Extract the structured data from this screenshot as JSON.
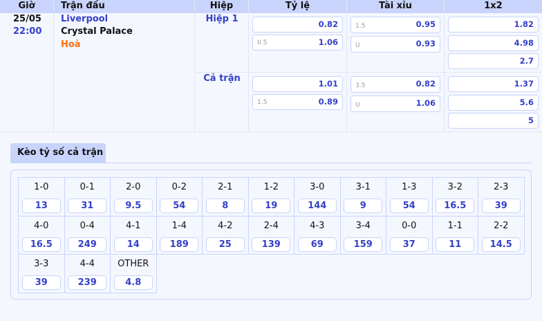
{
  "header": {
    "time": "Giờ",
    "match": "Trận đấu",
    "half": "Hiệp",
    "handicap": "Tỷ lệ",
    "overunder": "Tài xỉu",
    "x12": "1x2"
  },
  "match": {
    "date": "25/05",
    "time": "22:00",
    "home": "Liverpool",
    "away": "Crystal Palace",
    "draw": "Hoà"
  },
  "periods": [
    {
      "label": "Hiệp 1",
      "handicap": [
        {
          "line": "",
          "odds": "0.82"
        },
        {
          "line": "0.5",
          "odds": "1.06"
        }
      ],
      "overunder": [
        {
          "line": "1.5",
          "odds": "0.95"
        },
        {
          "line": "U",
          "odds": "0.93"
        }
      ],
      "x12": [
        "1.82",
        "4.98",
        "2.7"
      ]
    },
    {
      "label": "Cả trận",
      "handicap": [
        {
          "line": "",
          "odds": "1.01"
        },
        {
          "line": "1.5",
          "odds": "0.89"
        }
      ],
      "overunder": [
        {
          "line": "3.5",
          "odds": "0.82"
        },
        {
          "line": "U",
          "odds": "1.06"
        }
      ],
      "x12": [
        "1.37",
        "5.6",
        "5"
      ]
    }
  ],
  "correct_score": {
    "tab": "Kèo tỷ số cả trận",
    "items": [
      {
        "score": "1-0",
        "odds": "13"
      },
      {
        "score": "0-1",
        "odds": "31"
      },
      {
        "score": "2-0",
        "odds": "9.5"
      },
      {
        "score": "0-2",
        "odds": "54"
      },
      {
        "score": "2-1",
        "odds": "8"
      },
      {
        "score": "1-2",
        "odds": "19"
      },
      {
        "score": "3-0",
        "odds": "144"
      },
      {
        "score": "3-1",
        "odds": "9"
      },
      {
        "score": "1-3",
        "odds": "54"
      },
      {
        "score": "3-2",
        "odds": "16.5"
      },
      {
        "score": "2-3",
        "odds": "39"
      },
      {
        "score": "4-0",
        "odds": "16.5"
      },
      {
        "score": "0-4",
        "odds": "249"
      },
      {
        "score": "4-1",
        "odds": "14"
      },
      {
        "score": "1-4",
        "odds": "189"
      },
      {
        "score": "4-2",
        "odds": "25"
      },
      {
        "score": "2-4",
        "odds": "139"
      },
      {
        "score": "4-3",
        "odds": "69"
      },
      {
        "score": "3-4",
        "odds": "159"
      },
      {
        "score": "0-0",
        "odds": "37"
      },
      {
        "score": "1-1",
        "odds": "11"
      },
      {
        "score": "2-2",
        "odds": "14.5"
      },
      {
        "score": "3-3",
        "odds": "39"
      },
      {
        "score": "4-4",
        "odds": "239"
      },
      {
        "score": "OTHER",
        "odds": "4.8"
      }
    ]
  }
}
